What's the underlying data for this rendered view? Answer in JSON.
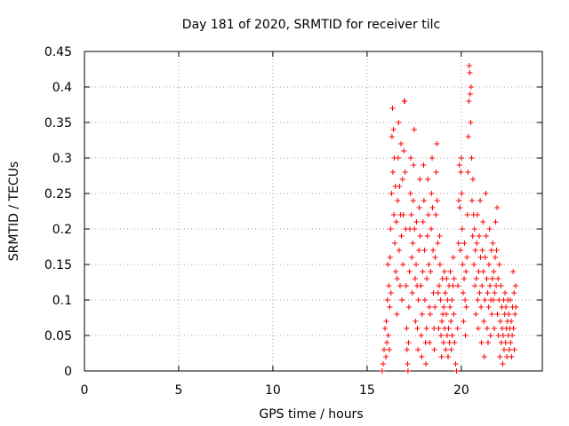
{
  "chart_data": {
    "type": "scatter",
    "title": "Day 181 of 2020, SRMTID for receiver tilc",
    "xlabel": "GPS time / hours",
    "ylabel": "SRMTID / TECUs",
    "xlim": [
      0,
      24.3
    ],
    "ylim": [
      0,
      0.45
    ],
    "xticks": [
      0,
      5,
      10,
      15,
      20
    ],
    "xtick_labels": [
      "0",
      "5",
      "10",
      "15",
      "20"
    ],
    "yticks": [
      0,
      0.05,
      0.1,
      0.15,
      0.2,
      0.25,
      0.3,
      0.35,
      0.4,
      0.45
    ],
    "ytick_labels": [
      "0",
      "0.05",
      "0.1",
      "0.15",
      "0.2",
      "0.25",
      "0.3",
      "0.35",
      "0.4",
      "0.45"
    ],
    "grid": true,
    "marker": "+",
    "color": "#ff0000",
    "series": [
      {
        "name": "SRMTID",
        "points": [
          [
            15.8,
            0.0
          ],
          [
            15.85,
            0.01
          ],
          [
            15.9,
            0.03
          ],
          [
            15.95,
            0.06
          ],
          [
            16.0,
            0.02
          ],
          [
            16.02,
            0.07
          ],
          [
            16.05,
            0.04
          ],
          [
            16.08,
            0.1
          ],
          [
            16.1,
            0.15
          ],
          [
            16.12,
            0.05
          ],
          [
            16.15,
            0.12
          ],
          [
            16.18,
            0.03
          ],
          [
            16.2,
            0.09
          ],
          [
            16.22,
            0.16
          ],
          [
            16.25,
            0.2
          ],
          [
            16.27,
            0.11
          ],
          [
            16.3,
            0.25
          ],
          [
            16.32,
            0.33
          ],
          [
            16.35,
            0.37
          ],
          [
            16.37,
            0.28
          ],
          [
            16.4,
            0.34
          ],
          [
            16.42,
            0.22
          ],
          [
            16.45,
            0.3
          ],
          [
            16.47,
            0.18
          ],
          [
            16.5,
            0.26
          ],
          [
            16.52,
            0.14
          ],
          [
            16.55,
            0.21
          ],
          [
            16.58,
            0.08
          ],
          [
            16.6,
            0.13
          ],
          [
            16.62,
            0.24
          ],
          [
            16.65,
            0.3
          ],
          [
            16.67,
            0.35
          ],
          [
            16.7,
            0.17
          ],
          [
            16.72,
            0.26
          ],
          [
            16.75,
            0.12
          ],
          [
            16.78,
            0.22
          ],
          [
            16.8,
            0.32
          ],
          [
            16.82,
            0.19
          ],
          [
            16.85,
            0.1
          ],
          [
            16.88,
            0.27
          ],
          [
            16.9,
            0.15
          ],
          [
            16.92,
            0.22
          ],
          [
            16.95,
            0.31
          ],
          [
            16.97,
            0.38
          ],
          [
            17.0,
            0.38
          ],
          [
            17.02,
            0.28
          ],
          [
            17.05,
            0.2
          ],
          [
            17.07,
            0.12
          ],
          [
            17.1,
            0.06
          ],
          [
            17.12,
            0.03
          ],
          [
            17.15,
            0.01
          ],
          [
            17.17,
            0.0
          ],
          [
            17.2,
            0.04
          ],
          [
            17.22,
            0.09
          ],
          [
            17.25,
            0.14
          ],
          [
            17.27,
            0.2
          ],
          [
            17.3,
            0.25
          ],
          [
            17.32,
            0.3
          ],
          [
            17.35,
            0.22
          ],
          [
            17.37,
            0.16
          ],
          [
            17.4,
            0.11
          ],
          [
            17.42,
            0.18
          ],
          [
            17.45,
            0.24
          ],
          [
            17.47,
            0.29
          ],
          [
            17.5,
            0.34
          ],
          [
            17.52,
            0.2
          ],
          [
            17.55,
            0.13
          ],
          [
            17.57,
            0.07
          ],
          [
            17.6,
            0.15
          ],
          [
            17.62,
            0.21
          ],
          [
            17.65,
            0.12
          ],
          [
            17.67,
            0.06
          ],
          [
            17.7,
            0.03
          ],
          [
            17.72,
            0.1
          ],
          [
            17.75,
            0.17
          ],
          [
            17.77,
            0.23
          ],
          [
            17.8,
            0.27
          ],
          [
            17.82,
            0.19
          ],
          [
            17.85,
            0.12
          ],
          [
            17.87,
            0.05
          ],
          [
            17.9,
            0.02
          ],
          [
            17.92,
            0.08
          ],
          [
            17.95,
            0.14
          ],
          [
            17.97,
            0.21
          ],
          [
            18.0,
            0.29
          ],
          [
            18.02,
            0.24
          ],
          [
            18.05,
            0.17
          ],
          [
            18.07,
            0.1
          ],
          [
            18.1,
            0.04
          ],
          [
            18.12,
            0.01
          ],
          [
            18.15,
            0.06
          ],
          [
            18.17,
            0.13
          ],
          [
            18.2,
            0.19
          ],
          [
            18.22,
            0.27
          ],
          [
            18.25,
            0.22
          ],
          [
            18.27,
            0.15
          ],
          [
            18.3,
            0.09
          ],
          [
            18.32,
            0.04
          ],
          [
            18.35,
            0.08
          ],
          [
            18.37,
            0.14
          ],
          [
            18.4,
            0.2
          ],
          [
            18.42,
            0.25
          ],
          [
            18.45,
            0.3
          ],
          [
            18.47,
            0.23
          ],
          [
            18.5,
            0.17
          ],
          [
            18.52,
            0.11
          ],
          [
            18.55,
            0.06
          ],
          [
            18.57,
            0.03
          ],
          [
            18.6,
            0.09
          ],
          [
            18.62,
            0.16
          ],
          [
            18.65,
            0.22
          ],
          [
            18.67,
            0.28
          ],
          [
            18.7,
            0.32
          ],
          [
            18.72,
            0.24
          ],
          [
            18.75,
            0.18
          ],
          [
            18.77,
            0.11
          ],
          [
            18.8,
            0.06
          ],
          [
            18.82,
            0.12
          ],
          [
            18.85,
            0.19
          ],
          [
            18.87,
            0.15
          ],
          [
            18.9,
            0.1
          ],
          [
            18.92,
            0.05
          ],
          [
            18.95,
            0.02
          ],
          [
            18.97,
            0.07
          ],
          [
            19.0,
            0.13
          ],
          [
            19.02,
            0.08
          ],
          [
            19.05,
            0.04
          ],
          [
            19.07,
            0.09
          ],
          [
            19.1,
            0.14
          ],
          [
            19.12,
            0.06
          ],
          [
            19.15,
            0.11
          ],
          [
            19.17,
            0.03
          ],
          [
            19.2,
            0.08
          ],
          [
            19.22,
            0.13
          ],
          [
            19.25,
            0.05
          ],
          [
            19.27,
            0.1
          ],
          [
            19.3,
            0.02
          ],
          [
            19.32,
            0.06
          ],
          [
            19.35,
            0.12
          ],
          [
            19.37,
            0.04
          ],
          [
            19.4,
            0.09
          ],
          [
            19.42,
            0.14
          ],
          [
            19.45,
            0.07
          ],
          [
            19.47,
            0.03
          ],
          [
            19.5,
            0.1
          ],
          [
            19.52,
            0.05
          ],
          [
            19.55,
            0.12
          ],
          [
            19.57,
            0.16
          ],
          [
            19.6,
            0.08
          ],
          [
            19.62,
            0.13
          ],
          [
            19.65,
            0.04
          ],
          [
            19.7,
            0.01
          ],
          [
            19.75,
            0.0
          ],
          [
            19.8,
            0.06
          ],
          [
            19.82,
            0.12
          ],
          [
            19.85,
            0.18
          ],
          [
            19.87,
            0.24
          ],
          [
            19.9,
            0.29
          ],
          [
            19.92,
            0.23
          ],
          [
            19.95,
            0.17
          ],
          [
            19.97,
            0.28
          ],
          [
            20.0,
            0.3
          ],
          [
            20.02,
            0.25
          ],
          [
            20.05,
            0.2
          ],
          [
            20.07,
            0.15
          ],
          [
            20.1,
            0.11
          ],
          [
            20.12,
            0.07
          ],
          [
            20.15,
            0.13
          ],
          [
            20.17,
            0.18
          ],
          [
            20.2,
            0.1
          ],
          [
            20.22,
            0.05
          ],
          [
            20.25,
            0.14
          ],
          [
            20.27,
            0.09
          ],
          [
            20.3,
            0.16
          ],
          [
            20.32,
            0.22
          ],
          [
            20.35,
            0.28
          ],
          [
            20.37,
            0.33
          ],
          [
            20.4,
            0.38
          ],
          [
            20.42,
            0.43
          ],
          [
            20.45,
            0.42
          ],
          [
            20.47,
            0.39
          ],
          [
            20.5,
            0.35
          ],
          [
            20.52,
            0.4
          ],
          [
            20.55,
            0.3
          ],
          [
            20.57,
            0.24
          ],
          [
            20.6,
            0.19
          ],
          [
            20.62,
            0.27
          ],
          [
            20.65,
            0.22
          ],
          [
            20.67,
            0.15
          ],
          [
            20.7,
            0.2
          ],
          [
            20.72,
            0.12
          ],
          [
            20.75,
            0.17
          ],
          [
            20.77,
            0.08
          ],
          [
            20.8,
            0.13
          ],
          [
            20.82,
            0.18
          ],
          [
            20.85,
            0.22
          ],
          [
            20.87,
            0.1
          ],
          [
            20.9,
            0.06
          ],
          [
            20.92,
            0.14
          ],
          [
            20.95,
            0.19
          ],
          [
            20.97,
            0.11
          ],
          [
            21.0,
            0.24
          ],
          [
            21.02,
            0.16
          ],
          [
            21.05,
            0.09
          ],
          [
            21.07,
            0.04
          ],
          [
            21.1,
            0.12
          ],
          [
            21.12,
            0.17
          ],
          [
            21.15,
            0.21
          ],
          [
            21.17,
            0.14
          ],
          [
            21.2,
            0.07
          ],
          [
            21.22,
            0.02
          ],
          [
            21.25,
            0.1
          ],
          [
            21.27,
            0.16
          ],
          [
            21.3,
            0.25
          ],
          [
            21.32,
            0.19
          ],
          [
            21.35,
            0.13
          ],
          [
            21.37,
            0.06
          ],
          [
            21.4,
            0.11
          ],
          [
            21.42,
            0.04
          ],
          [
            21.45,
            0.09
          ],
          [
            21.47,
            0.15
          ],
          [
            21.5,
            0.2
          ],
          [
            21.52,
            0.12
          ],
          [
            21.55,
            0.05
          ],
          [
            21.57,
            0.1
          ],
          [
            21.6,
            0.17
          ],
          [
            21.62,
            0.08
          ],
          [
            21.65,
            0.13
          ],
          [
            21.67,
            0.18
          ],
          [
            21.7,
            0.1
          ],
          [
            21.72,
            0.14
          ],
          [
            21.75,
            0.06
          ],
          [
            21.77,
            0.11
          ],
          [
            21.8,
            0.16
          ],
          [
            21.82,
            0.21
          ],
          [
            21.85,
            0.12
          ],
          [
            21.87,
            0.17
          ],
          [
            21.9,
            0.23
          ],
          [
            21.92,
            0.08
          ],
          [
            21.95,
            0.13
          ],
          [
            21.97,
            0.05
          ],
          [
            22.0,
            0.1
          ],
          [
            22.02,
            0.15
          ],
          [
            22.05,
            0.02
          ],
          [
            22.07,
            0.07
          ],
          [
            22.1,
            0.12
          ],
          [
            22.12,
            0.04
          ],
          [
            22.15,
            0.09
          ],
          [
            22.17,
            0.06
          ],
          [
            22.2,
            0.01
          ],
          [
            22.22,
            0.05
          ],
          [
            22.25,
            0.1
          ],
          [
            22.27,
            0.03
          ],
          [
            22.3,
            0.08
          ],
          [
            22.32,
            0.11
          ],
          [
            22.35,
            0.04
          ],
          [
            22.37,
            0.09
          ],
          [
            22.4,
            0.06
          ],
          [
            22.42,
            0.02
          ],
          [
            22.45,
            0.07
          ],
          [
            22.47,
            0.1
          ],
          [
            22.5,
            0.05
          ],
          [
            22.52,
            0.08
          ],
          [
            22.55,
            0.03
          ],
          [
            22.57,
            0.06
          ],
          [
            22.6,
            0.1
          ],
          [
            22.62,
            0.04
          ],
          [
            22.65,
            0.07
          ],
          [
            22.67,
            0.02
          ],
          [
            22.7,
            0.05
          ],
          [
            22.72,
            0.09
          ],
          [
            22.75,
            0.14
          ],
          [
            22.77,
            0.06
          ],
          [
            22.8,
            0.11
          ],
          [
            22.82,
            0.03
          ],
          [
            22.85,
            0.08
          ],
          [
            22.88,
            0.12
          ],
          [
            22.9,
            0.09
          ]
        ]
      }
    ]
  }
}
